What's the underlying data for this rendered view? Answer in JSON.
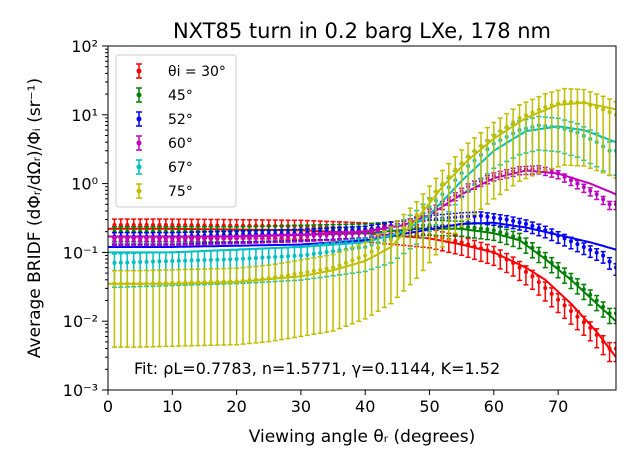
{
  "chart_data": {
    "type": "scatter",
    "title": "NXT85 turn in 0.2 barg LXe, 178 nm",
    "xlabel": "Viewing angle θᵣ (degrees)",
    "ylabel": "Average BRIDF (dΦᵣ/dΩᵣ)/Φᵢ (sr⁻¹)",
    "xlim": [
      0,
      79
    ],
    "ylim": [
      0.001,
      100
    ],
    "yscale": "log",
    "grid": false,
    "legend_position": "top-left",
    "x_ticks": [
      "0",
      "10",
      "20",
      "30",
      "40",
      "50",
      "60",
      "70"
    ],
    "y_ticks": [
      "10⁻³",
      "10⁻²",
      "10⁻¹",
      "10⁰",
      "10¹",
      "10²"
    ],
    "annotation": "Fit: ρL=0.7783, n=1.5771, γ=0.1144, K=1.52",
    "series": [
      {
        "name": "θi = 30°",
        "color": "#ff0000",
        "fit": [
          [
            0,
            0.22
          ],
          [
            10,
            0.22
          ],
          [
            20,
            0.215
          ],
          [
            30,
            0.21
          ],
          [
            40,
            0.19
          ],
          [
            50,
            0.16
          ],
          [
            55,
            0.13
          ],
          [
            60,
            0.1
          ],
          [
            65,
            0.06
          ],
          [
            68,
            0.04
          ],
          [
            72,
            0.018
          ],
          [
            76,
            0.007
          ],
          [
            79,
            0.003
          ]
        ],
        "data": [
          [
            0,
            0.25
          ],
          [
            10,
            0.25
          ],
          [
            20,
            0.245
          ],
          [
            30,
            0.24
          ],
          [
            40,
            0.22
          ],
          [
            45,
            0.2
          ],
          [
            50,
            0.18
          ],
          [
            55,
            0.14
          ],
          [
            60,
            0.1
          ],
          [
            63,
            0.07
          ],
          [
            66,
            0.045
          ],
          [
            69,
            0.025
          ],
          [
            72,
            0.014
          ],
          [
            75,
            0.008
          ],
          [
            78,
            0.004
          ]
        ],
        "rel_err": 0.22
      },
      {
        "name": "45°",
        "color": "#008000",
        "fit": [
          [
            0,
            0.17
          ],
          [
            10,
            0.17
          ],
          [
            20,
            0.17
          ],
          [
            30,
            0.18
          ],
          [
            40,
            0.19
          ],
          [
            48,
            0.22
          ],
          [
            55,
            0.22
          ],
          [
            60,
            0.19
          ],
          [
            64,
            0.15
          ],
          [
            68,
            0.08
          ],
          [
            72,
            0.04
          ],
          [
            76,
            0.018
          ],
          [
            79,
            0.01
          ]
        ],
        "data": [
          [
            0,
            0.2
          ],
          [
            10,
            0.2
          ],
          [
            20,
            0.2
          ],
          [
            30,
            0.21
          ],
          [
            40,
            0.22
          ],
          [
            45,
            0.24
          ],
          [
            50,
            0.25
          ],
          [
            55,
            0.24
          ],
          [
            60,
            0.21
          ],
          [
            64,
            0.16
          ],
          [
            67,
            0.1
          ],
          [
            70,
            0.06
          ],
          [
            73,
            0.035
          ],
          [
            76,
            0.02
          ],
          [
            78,
            0.013
          ]
        ],
        "rel_err": 0.18
      },
      {
        "name": "52°",
        "color": "#0000ff",
        "fit": [
          [
            0,
            0.12
          ],
          [
            10,
            0.12
          ],
          [
            20,
            0.125
          ],
          [
            30,
            0.13
          ],
          [
            40,
            0.15
          ],
          [
            48,
            0.2
          ],
          [
            55,
            0.26
          ],
          [
            60,
            0.27
          ],
          [
            65,
            0.23
          ],
          [
            70,
            0.18
          ],
          [
            75,
            0.14
          ],
          [
            79,
            0.11
          ]
        ],
        "data": [
          [
            0,
            0.17
          ],
          [
            10,
            0.17
          ],
          [
            20,
            0.18
          ],
          [
            30,
            0.19
          ],
          [
            40,
            0.21
          ],
          [
            45,
            0.25
          ],
          [
            50,
            0.3
          ],
          [
            55,
            0.33
          ],
          [
            58,
            0.34
          ],
          [
            62,
            0.3
          ],
          [
            65,
            0.26
          ],
          [
            68,
            0.21
          ],
          [
            71,
            0.16
          ],
          [
            74,
            0.12
          ],
          [
            77,
            0.09
          ],
          [
            79,
            0.06
          ]
        ],
        "rel_err": 0.14
      },
      {
        "name": "60°",
        "color": "#bf00bf",
        "fit": [
          [
            0,
            0.17
          ],
          [
            10,
            0.17
          ],
          [
            20,
            0.17
          ],
          [
            30,
            0.18
          ],
          [
            40,
            0.2
          ],
          [
            46,
            0.25
          ],
          [
            50,
            0.35
          ],
          [
            55,
            0.7
          ],
          [
            60,
            1.2
          ],
          [
            65,
            1.55
          ],
          [
            70,
            1.4
          ],
          [
            75,
            1.0
          ],
          [
            79,
            0.7
          ]
        ],
        "data": [
          [
            0,
            0.15
          ],
          [
            10,
            0.15
          ],
          [
            20,
            0.16
          ],
          [
            30,
            0.17
          ],
          [
            40,
            0.19
          ],
          [
            44,
            0.22
          ],
          [
            48,
            0.3
          ],
          [
            52,
            0.5
          ],
          [
            56,
            0.9
          ],
          [
            60,
            1.3
          ],
          [
            64,
            1.6
          ],
          [
            67,
            1.65
          ],
          [
            70,
            1.4
          ],
          [
            73,
            1.0
          ],
          [
            76,
            0.7
          ],
          [
            78,
            0.5
          ]
        ],
        "rel_err": 0.1
      },
      {
        "name": "67°",
        "color": "#00bfbf",
        "fit": [
          [
            0,
            0.1
          ],
          [
            10,
            0.1
          ],
          [
            20,
            0.11
          ],
          [
            30,
            0.12
          ],
          [
            40,
            0.14
          ],
          [
            46,
            0.2
          ],
          [
            50,
            0.35
          ],
          [
            55,
            1.1
          ],
          [
            60,
            3.0
          ],
          [
            65,
            5.8
          ],
          [
            70,
            6.8
          ],
          [
            74,
            6.0
          ],
          [
            79,
            4.0
          ]
        ],
        "data": [
          [
            0,
            0.07
          ],
          [
            10,
            0.075
          ],
          [
            20,
            0.08
          ],
          [
            30,
            0.09
          ],
          [
            40,
            0.12
          ],
          [
            44,
            0.16
          ],
          [
            48,
            0.3
          ],
          [
            52,
            0.7
          ],
          [
            56,
            1.8
          ],
          [
            60,
            3.8
          ],
          [
            64,
            6.0
          ],
          [
            67,
            7.0
          ],
          [
            70,
            6.6
          ],
          [
            73,
            5.5
          ],
          [
            76,
            4.0
          ],
          [
            78,
            3.0
          ]
        ],
        "rel_err": 0.35
      },
      {
        "name": "75°",
        "color": "#bfbf00",
        "fit": [
          [
            0,
            0.035
          ],
          [
            10,
            0.035
          ],
          [
            20,
            0.037
          ],
          [
            30,
            0.045
          ],
          [
            35,
            0.055
          ],
          [
            40,
            0.075
          ],
          [
            44,
            0.12
          ],
          [
            48,
            0.3
          ],
          [
            52,
            0.9
          ],
          [
            56,
            2.2
          ],
          [
            60,
            4.5
          ],
          [
            65,
            9.0
          ],
          [
            70,
            14.0
          ],
          [
            74,
            15.0
          ],
          [
            79,
            12.0
          ]
        ],
        "data": [
          [
            0,
            0.035
          ],
          [
            5,
            0.035
          ],
          [
            10,
            0.036
          ],
          [
            15,
            0.037
          ],
          [
            20,
            0.038
          ],
          [
            25,
            0.042
          ],
          [
            30,
            0.05
          ],
          [
            35,
            0.06
          ],
          [
            40,
            0.09
          ],
          [
            44,
            0.15
          ],
          [
            48,
            0.35
          ],
          [
            52,
            1.0
          ],
          [
            56,
            2.5
          ],
          [
            60,
            5.0
          ],
          [
            64,
            9.0
          ],
          [
            68,
            13.0
          ],
          [
            71,
            15.5
          ],
          [
            74,
            15.0
          ],
          [
            77,
            12.0
          ],
          [
            79,
            10.0
          ]
        ],
        "rel_err": 0.55
      }
    ]
  }
}
